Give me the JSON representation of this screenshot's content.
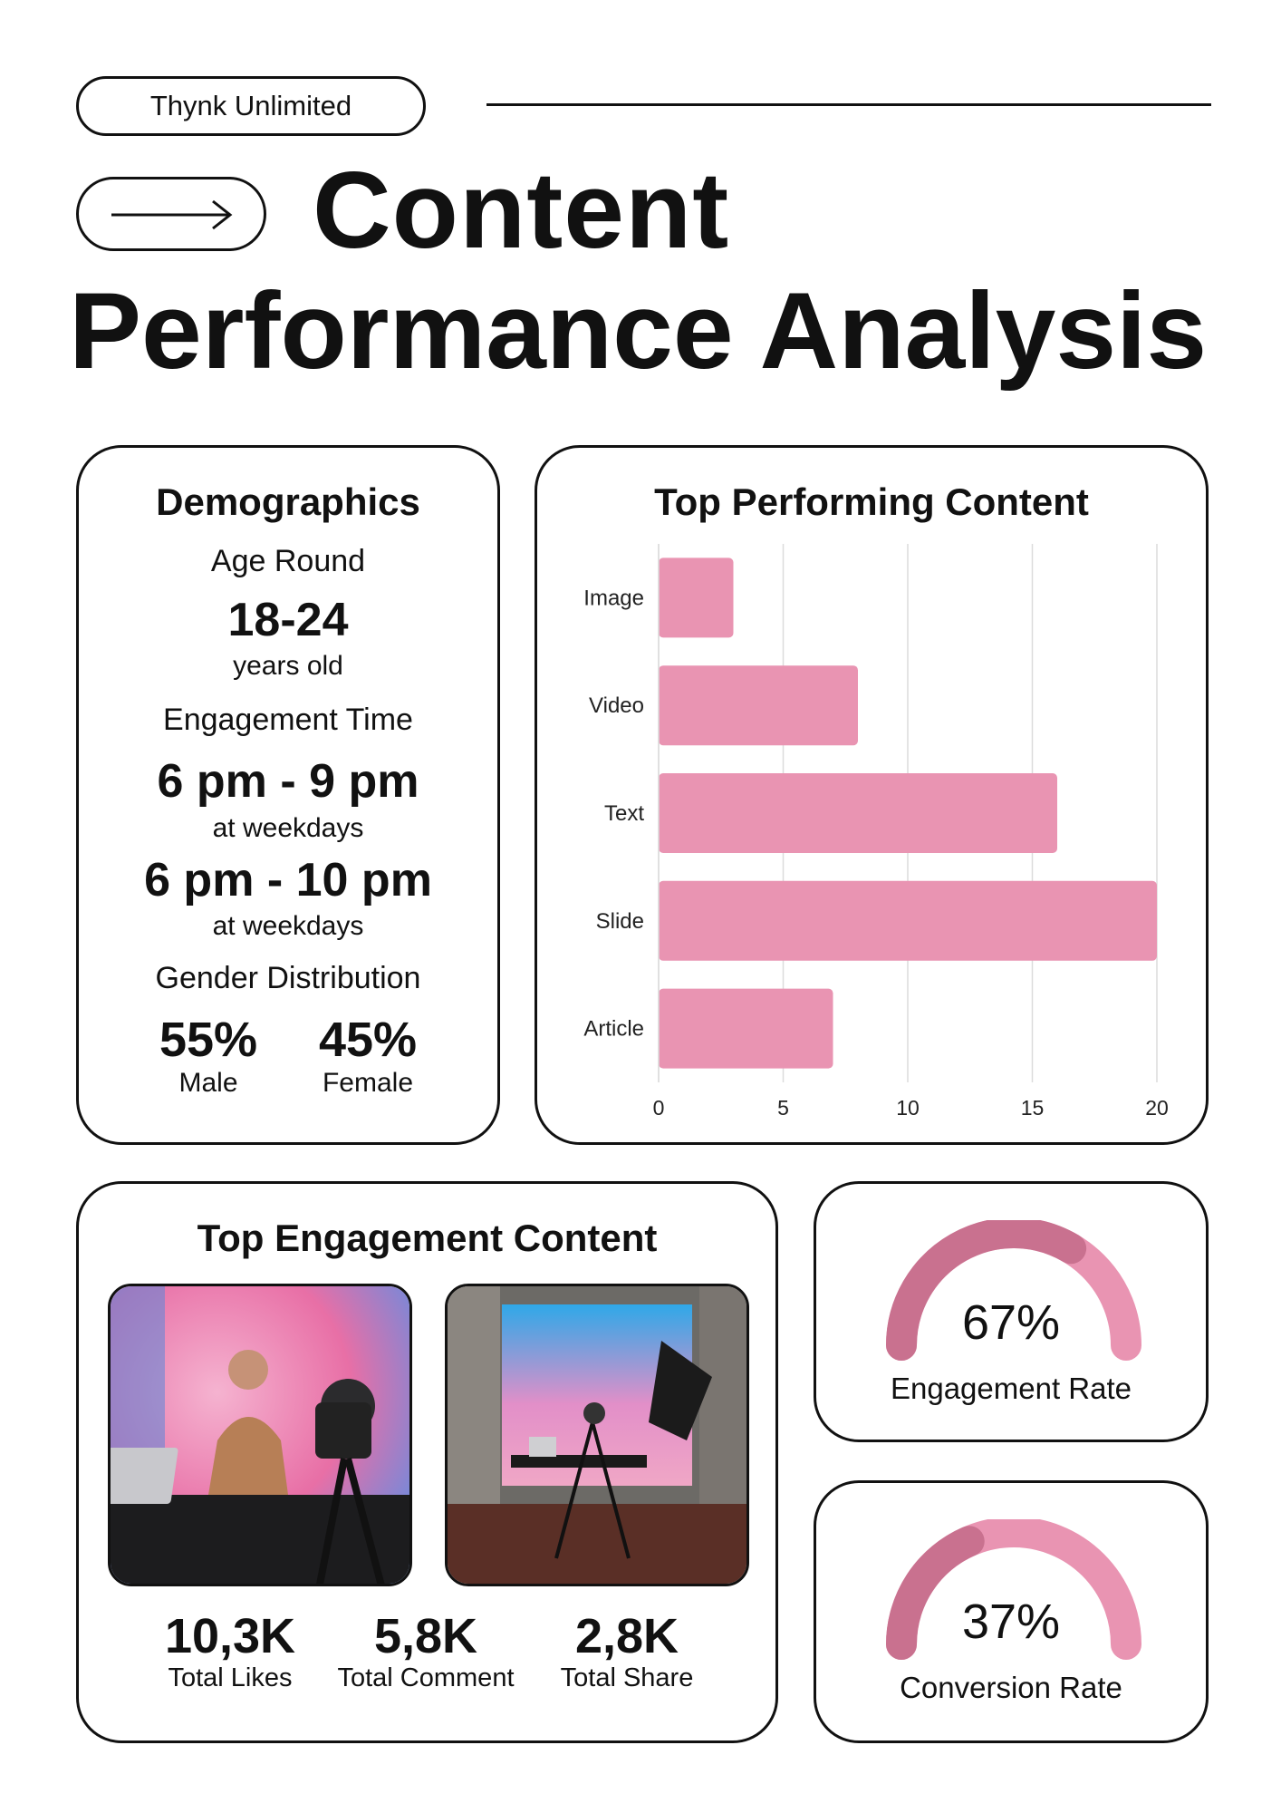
{
  "brand": "Thynk Unlimited",
  "title": {
    "line1": "Content",
    "line2": "Performance Analysis"
  },
  "demographics": {
    "heading": "Demographics",
    "age_label": "Age Round",
    "age_value": "18-24",
    "age_unit": "years old",
    "engagement_label": "Engagement Time",
    "slot1_value": "6 pm - 9 pm",
    "slot1_note": "at weekdays",
    "slot2_value": "6 pm - 10 pm",
    "slot2_note": "at weekdays",
    "gender_label": "Gender Distribution",
    "male_value": "55%",
    "male_label": "Male",
    "female_value": "45%",
    "female_label": "Female"
  },
  "chart_data": {
    "type": "bar",
    "orientation": "horizontal",
    "title": "Top Performing Content",
    "categories": [
      "Image",
      "Video",
      "Text",
      "Slide",
      "Article"
    ],
    "values": [
      3,
      8,
      16,
      20,
      7
    ],
    "xlim": [
      0,
      20
    ],
    "x_ticks": [
      "0",
      "5",
      "10",
      "15",
      "20"
    ],
    "grid": true,
    "bar_color": "#e994b2"
  },
  "engagement": {
    "heading": "Top Engagement Content",
    "stats": [
      {
        "value": "10,3K",
        "label": "Total Likes"
      },
      {
        "value": "5,8K",
        "label": "Total Comment"
      },
      {
        "value": "2,8K",
        "label": "Total Share"
      }
    ]
  },
  "gauges": [
    {
      "value": "67%",
      "fraction": 0.67,
      "label": "Engagement Rate"
    },
    {
      "value": "37%",
      "fraction": 0.37,
      "label": "Conversion Rate"
    }
  ],
  "colors": {
    "bar": "#e994b2",
    "gauge_track": "#e994b2",
    "gauge_fill": "#c9718f"
  }
}
